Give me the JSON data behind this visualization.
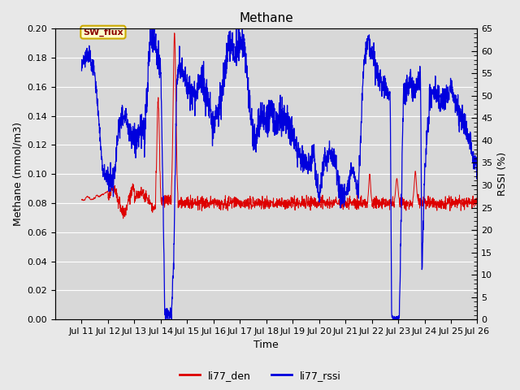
{
  "title": "Methane",
  "xlabel": "Time",
  "ylabel_left": "Methane (mmol/m3)",
  "ylabel_right": "RSSI (%)",
  "ylim_left": [
    0.0,
    0.2
  ],
  "ylim_right": [
    0,
    65
  ],
  "yticks_left": [
    0.0,
    0.02,
    0.04,
    0.06,
    0.08,
    0.1,
    0.12,
    0.14,
    0.16,
    0.18,
    0.2
  ],
  "yticks_right": [
    0,
    5,
    10,
    15,
    20,
    25,
    30,
    35,
    40,
    45,
    50,
    55,
    60,
    65
  ],
  "xtick_labels": [
    "Jul 11",
    "Jul 12",
    "Jul 13",
    "Jul 14",
    "Jul 15",
    "Jul 16",
    "Jul 17",
    "Jul 18",
    "Jul 19",
    "Jul 20",
    "Jul 21",
    "Jul 22",
    "Jul 23",
    "Jul 24",
    "Jul 25",
    "Jul 26"
  ],
  "annotation_text": "SW_flux",
  "background_color": "#e8e8e8",
  "plot_bg_color": "#d8d8d8",
  "grid_color": "#ffffff",
  "line_color_red": "#dd0000",
  "line_color_blue": "#0000dd",
  "legend_labels": [
    "li77_den",
    "li77_rssi"
  ],
  "title_fontsize": 11,
  "label_fontsize": 9,
  "tick_fontsize": 8
}
